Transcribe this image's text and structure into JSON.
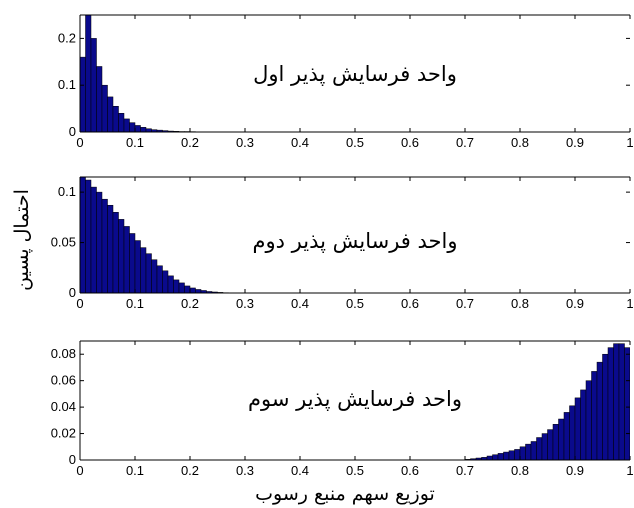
{
  "figure": {
    "ylabel": "احتمال پسین",
    "xlabel": "توزیع سهم منبع رسوب",
    "bar_color": "#0a0a8c"
  },
  "chart_data": [
    {
      "type": "bar",
      "title": "واحد فرسایش پذیر اول",
      "xlim": [
        0,
        1
      ],
      "ylim": [
        0,
        0.25
      ],
      "xticks": [
        "0",
        "0.1",
        "0.2",
        "0.3",
        "0.4",
        "0.5",
        "0.6",
        "0.7",
        "0.8",
        "0.9",
        "1"
      ],
      "yticks": [
        "0",
        "0.1",
        "0.2"
      ],
      "bin_start": 0,
      "bin_width": 0.01,
      "values": [
        0.16,
        0.25,
        0.2,
        0.14,
        0.1,
        0.075,
        0.055,
        0.04,
        0.028,
        0.02,
        0.014,
        0.01,
        0.007,
        0.005,
        0.004,
        0.003,
        0.002,
        0.0015,
        0.001,
        0.001,
        0.0008,
        0.0005,
        0.0004,
        0.0003
      ]
    },
    {
      "type": "bar",
      "title": "واحد فرسایش پذیر دوم",
      "xlim": [
        0,
        1
      ],
      "ylim": [
        0,
        0.115
      ],
      "xticks": [
        "0",
        "0.1",
        "0.2",
        "0.3",
        "0.4",
        "0.5",
        "0.6",
        "0.7",
        "0.8",
        "0.9",
        "1"
      ],
      "yticks": [
        "0",
        "0.05",
        "0.1"
      ],
      "bin_start": 0,
      "bin_width": 0.01,
      "values": [
        0.115,
        0.112,
        0.105,
        0.1,
        0.093,
        0.087,
        0.08,
        0.073,
        0.066,
        0.059,
        0.052,
        0.045,
        0.039,
        0.033,
        0.027,
        0.022,
        0.017,
        0.013,
        0.01,
        0.007,
        0.005,
        0.0035,
        0.0025,
        0.0015,
        0.001,
        0.0006,
        0.0003
      ]
    },
    {
      "type": "bar",
      "title": "واحد فرسایش پذیر سوم",
      "xlim": [
        0,
        1
      ],
      "ylim": [
        0,
        0.09
      ],
      "xticks": [
        "0",
        "0.1",
        "0.2",
        "0.3",
        "0.4",
        "0.5",
        "0.6",
        "0.7",
        "0.8",
        "0.9",
        "1"
      ],
      "yticks": [
        "0",
        "0.02",
        "0.04",
        "0.06",
        "0.08"
      ],
      "bin_start": 0.7,
      "bin_width": 0.01,
      "values": [
        0.0005,
        0.001,
        0.0015,
        0.002,
        0.003,
        0.004,
        0.005,
        0.006,
        0.007,
        0.008,
        0.01,
        0.012,
        0.014,
        0.017,
        0.02,
        0.023,
        0.027,
        0.031,
        0.036,
        0.041,
        0.047,
        0.053,
        0.06,
        0.067,
        0.074,
        0.08,
        0.085,
        0.088,
        0.088,
        0.085,
        0.078,
        0.068
      ]
    }
  ]
}
